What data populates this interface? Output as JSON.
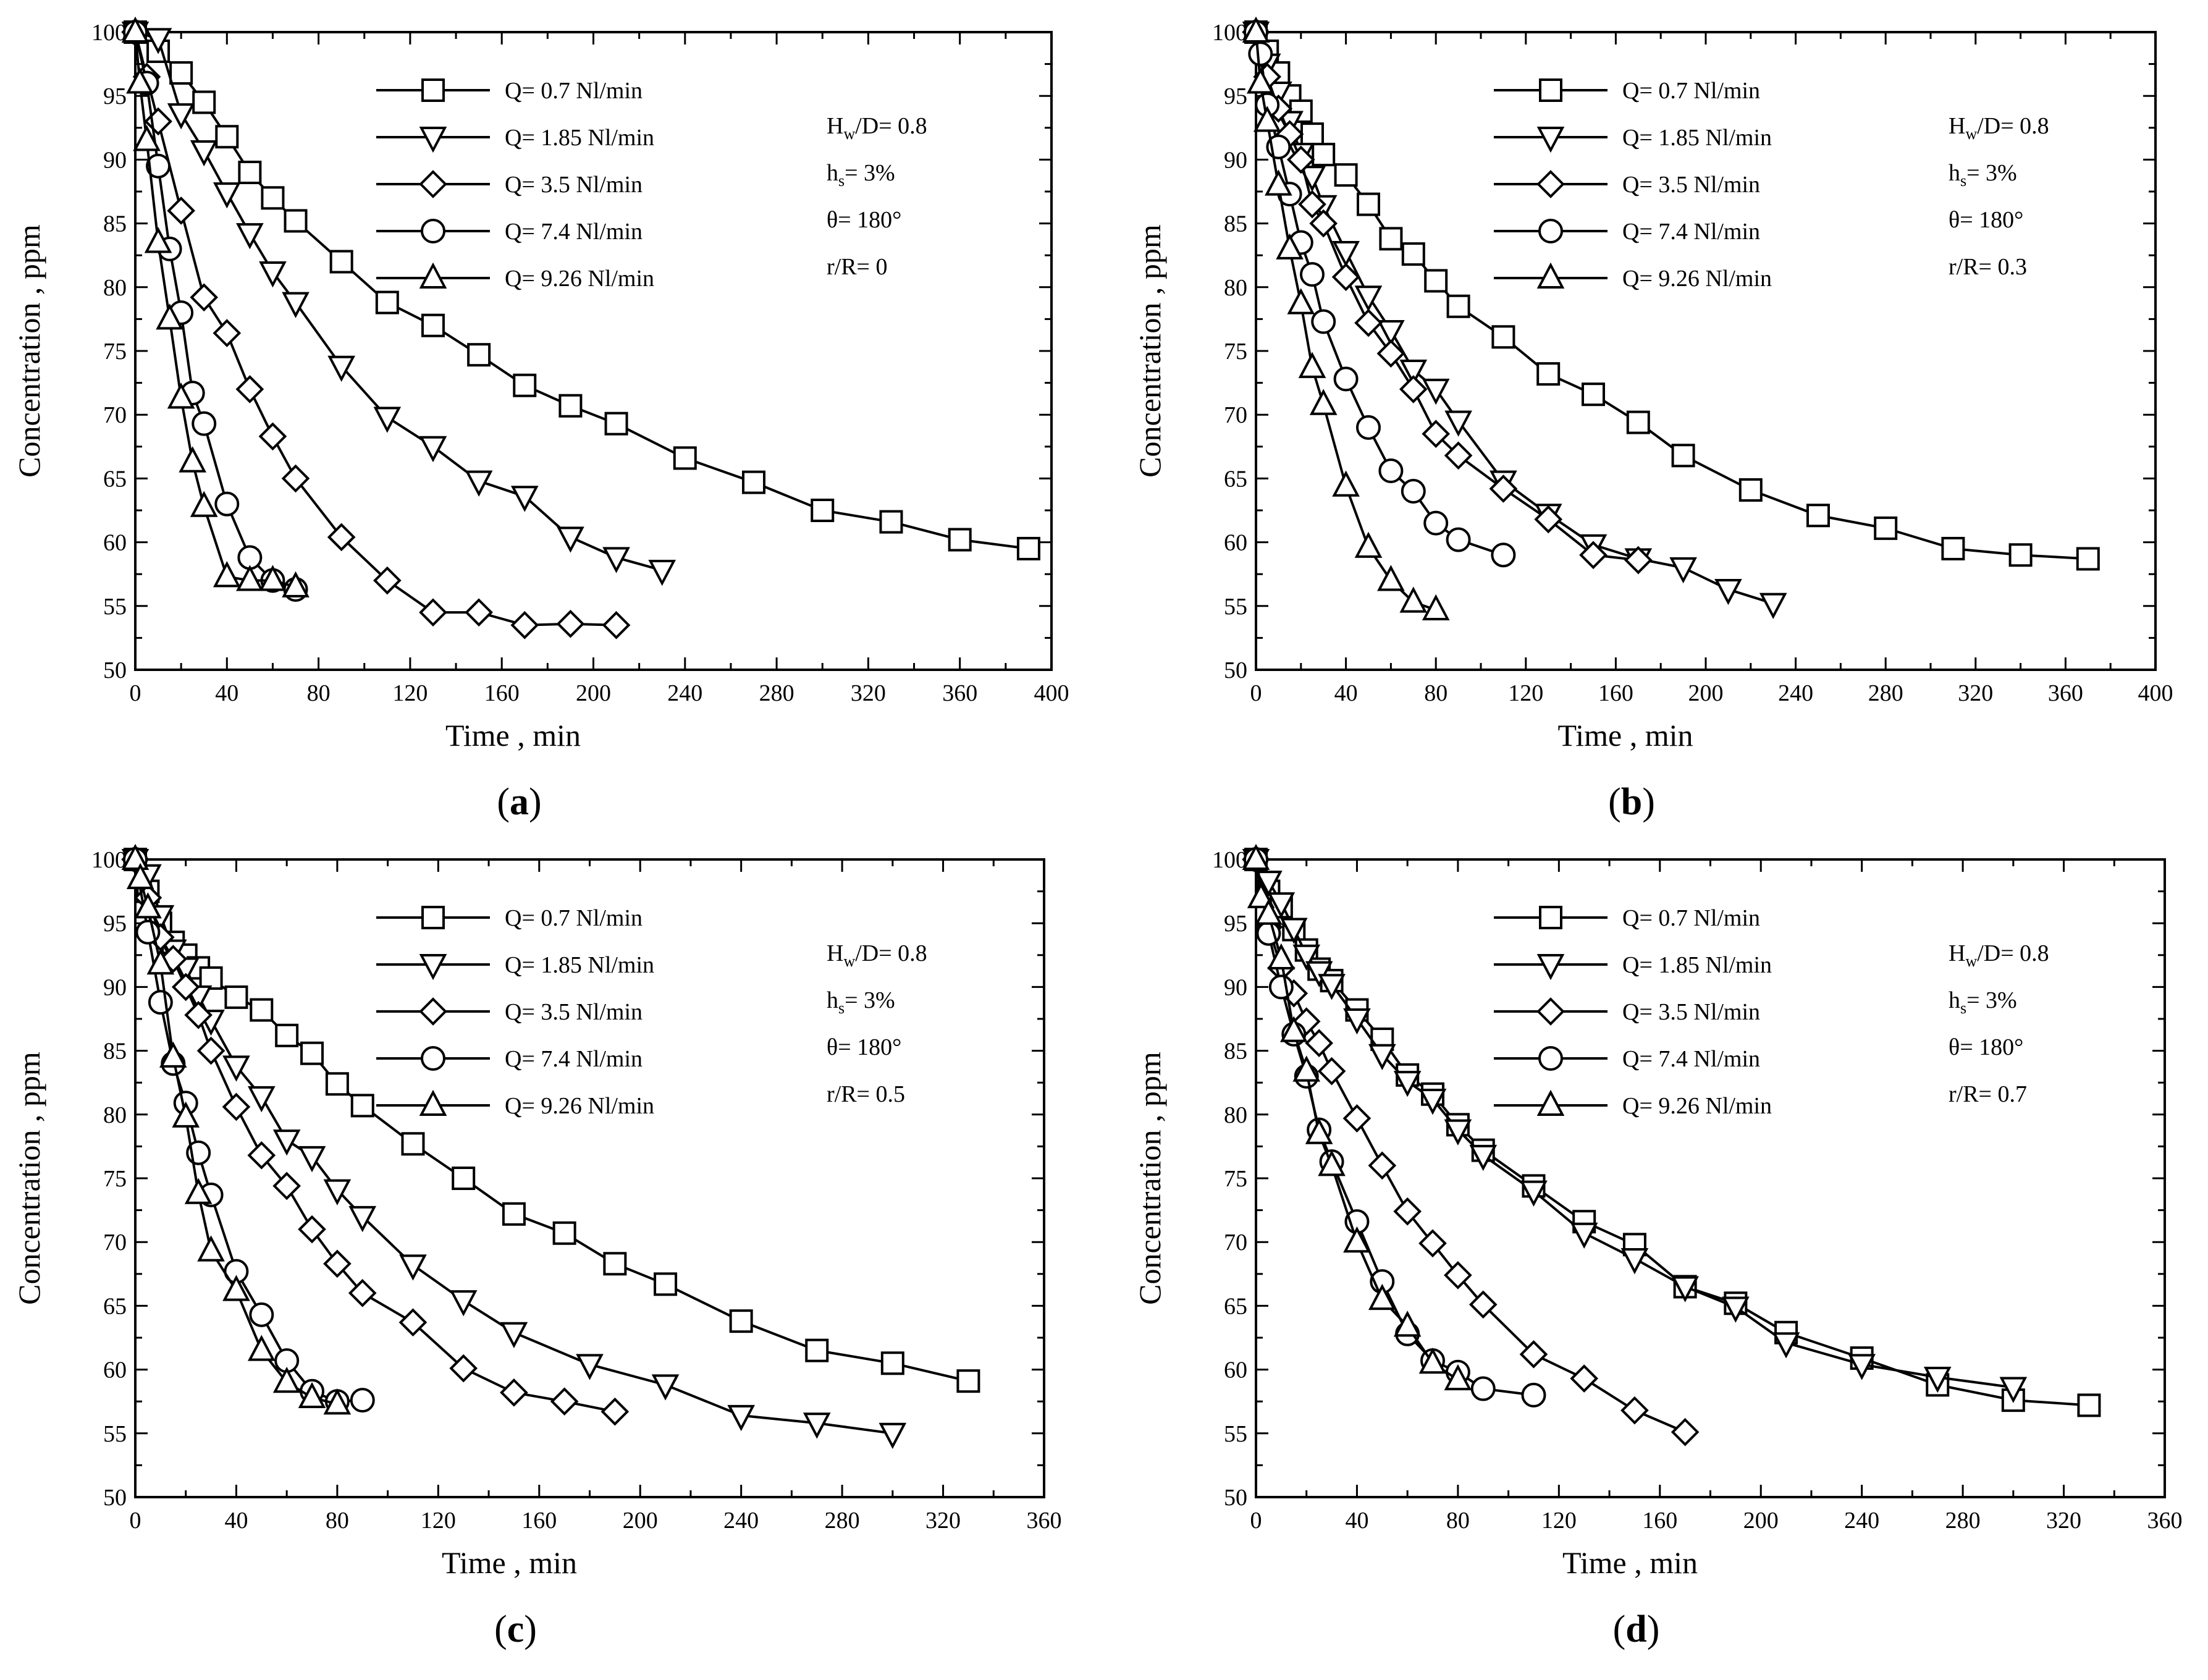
{
  "figure": {
    "marker_names": [
      "square",
      "triangle-down",
      "diamond",
      "circle",
      "triangle-up"
    ]
  },
  "chart_data": [
    {
      "type": "line",
      "panel_label": "a",
      "xlabel": "Time , min",
      "ylabel": "Concentration , ppm",
      "xlim": [
        0,
        400
      ],
      "ylim": [
        50,
        100
      ],
      "xticks": [
        "0",
        "40",
        "80",
        "120",
        "160",
        "200",
        "240",
        "280",
        "320",
        "360",
        "400"
      ],
      "yticks": [
        "50",
        "55",
        "60",
        "65",
        "70",
        "75",
        "80",
        "85",
        "90",
        "95",
        "100"
      ],
      "params": {
        "hw_prefix": "H",
        "hw_sub": "w",
        "hw_rest": "/D= 0.8",
        "hs_prefix": "h",
        "hs_sub": "s",
        "hs_rest": "= 3%",
        "theta": "θ= 180°",
        "r": "r/R= 0"
      },
      "series": [
        {
          "name": "Q= 0.7 Nl/min",
          "marker": "square",
          "x": [
            0,
            10,
            20,
            30,
            40,
            50,
            60,
            70,
            90,
            110,
            130,
            150,
            170,
            190,
            210,
            240,
            270,
            300,
            330,
            360,
            390
          ],
          "y": [
            100,
            98.5,
            96.8,
            94.5,
            91.8,
            89,
            87,
            85.2,
            82,
            78.8,
            77,
            74.7,
            72.3,
            70.7,
            69.3,
            66.6,
            64.7,
            62.5,
            61.6,
            60.2,
            59.5
          ]
        },
        {
          "name": "Q= 1.85 Nl/min",
          "marker": "triangle-down",
          "x": [
            0,
            10,
            20,
            30,
            40,
            50,
            60,
            70,
            90,
            110,
            130,
            150,
            170,
            190,
            210,
            230
          ],
          "y": [
            100,
            99.5,
            93.6,
            90.7,
            87.4,
            84.2,
            81.2,
            78.8,
            73.8,
            69.8,
            67.5,
            64.8,
            63.6,
            60.4,
            58.8,
            57.8
          ]
        },
        {
          "name": "Q= 3.5 Nl/min",
          "marker": "diamond",
          "x": [
            0,
            5,
            10,
            20,
            30,
            40,
            50,
            60,
            70,
            90,
            110,
            130,
            150,
            170,
            190,
            210
          ],
          "y": [
            100,
            96.5,
            93,
            86,
            79.2,
            76.4,
            72,
            68.3,
            65,
            60.4,
            57,
            54.5,
            54.5,
            53.5,
            53.6,
            53.5
          ]
        },
        {
          "name": "Q= 7.4 Nl/min",
          "marker": "circle",
          "x": [
            0,
            5,
            10,
            15,
            20,
            25,
            30,
            40,
            50,
            60,
            70
          ],
          "y": [
            100,
            96,
            89.5,
            83,
            78,
            71.7,
            69.3,
            63,
            58.8,
            57,
            56.3
          ]
        },
        {
          "name": "Q= 9.26 Nl/min",
          "marker": "triangle-up",
          "x": [
            0,
            2,
            5,
            10,
            15,
            20,
            25,
            30,
            40,
            50,
            60,
            70
          ],
          "y": [
            100,
            96,
            91.5,
            83.5,
            77.5,
            71.3,
            66.3,
            62.8,
            57.3,
            57,
            57,
            56.5
          ]
        }
      ]
    },
    {
      "type": "line",
      "panel_label": "b",
      "xlabel": "Time , min",
      "ylabel": "Concentration , ppm",
      "xlim": [
        0,
        400
      ],
      "ylim": [
        50,
        100
      ],
      "xticks": [
        "0",
        "40",
        "80",
        "120",
        "160",
        "200",
        "240",
        "280",
        "320",
        "360",
        "400"
      ],
      "yticks": [
        "50",
        "55",
        "60",
        "65",
        "70",
        "75",
        "80",
        "85",
        "90",
        "95",
        "100"
      ],
      "params": {
        "hw_prefix": "H",
        "hw_sub": "w",
        "hw_rest": "/D= 0.8",
        "hs_prefix": "h",
        "hs_sub": "s",
        "hs_rest": "= 3%",
        "theta": "θ= 180°",
        "r": "r/R= 0.3"
      },
      "series": [
        {
          "name": "Q= 0.7 Nl/min",
          "marker": "square",
          "x": [
            0,
            5,
            10,
            15,
            20,
            25,
            30,
            40,
            50,
            60,
            70,
            80,
            90,
            110,
            130,
            150,
            170,
            190,
            220,
            250,
            280,
            310,
            340,
            370
          ],
          "y": [
            100,
            98.5,
            96.8,
            95,
            93.8,
            92,
            90.4,
            88.8,
            86.5,
            83.8,
            82.6,
            80.5,
            78.5,
            76.1,
            73.2,
            71.6,
            69.4,
            66.8,
            64.1,
            62.1,
            61.1,
            59.5,
            59,
            58.7
          ]
        },
        {
          "name": "Q= 1.85 Nl/min",
          "marker": "triangle-down",
          "x": [
            0,
            5,
            10,
            15,
            20,
            25,
            30,
            40,
            50,
            60,
            70,
            80,
            90,
            110,
            130,
            150,
            170,
            190,
            210,
            230
          ],
          "y": [
            100,
            97.5,
            95.3,
            93,
            90.5,
            88.7,
            86.4,
            82.8,
            79.3,
            76.6,
            73.5,
            72,
            69.5,
            64.8,
            62.2,
            59.8,
            58.7,
            58,
            56.3,
            55.2
          ]
        },
        {
          "name": "Q= 3.5 Nl/min",
          "marker": "diamond",
          "x": [
            0,
            5,
            10,
            15,
            20,
            25,
            30,
            40,
            50,
            60,
            70,
            80,
            90,
            110,
            130,
            150,
            170
          ],
          "y": [
            100,
            96.5,
            94,
            92,
            90,
            86.5,
            85,
            80.8,
            77.2,
            74.8,
            72,
            68.5,
            66.8,
            64.2,
            61.8,
            59,
            58.6
          ]
        },
        {
          "name": "Q= 7.4 Nl/min",
          "marker": "circle",
          "x": [
            0,
            2,
            5,
            10,
            15,
            20,
            25,
            30,
            40,
            50,
            60,
            70,
            80,
            90,
            110
          ],
          "y": [
            100,
            98.3,
            94.3,
            91,
            87.3,
            83.5,
            81,
            77.3,
            72.8,
            69,
            65.6,
            64,
            61.5,
            60.2,
            59
          ]
        },
        {
          "name": "Q= 9.26 Nl/min",
          "marker": "triangle-up",
          "x": [
            0,
            2,
            5,
            10,
            15,
            20,
            25,
            30,
            40,
            50,
            60,
            70,
            80
          ],
          "y": [
            100,
            96,
            93,
            88,
            83,
            78.7,
            73.7,
            70.8,
            64.4,
            59.6,
            57,
            55.3,
            54.7
          ]
        }
      ]
    },
    {
      "type": "line",
      "panel_label": "c",
      "xlabel": "Time , min",
      "ylabel": "Concentration , ppm",
      "xlim": [
        0,
        360
      ],
      "ylim": [
        50,
        100
      ],
      "xticks": [
        "0",
        "40",
        "80",
        "120",
        "160",
        "200",
        "240",
        "280",
        "320",
        "360"
      ],
      "yticks": [
        "50",
        "55",
        "60",
        "65",
        "70",
        "75",
        "80",
        "85",
        "90",
        "95",
        "100"
      ],
      "params": {
        "hw_prefix": "H",
        "hw_sub": "w",
        "hw_rest": "/D= 0.8",
        "hs_prefix": "h",
        "hs_sub": "s",
        "hs_rest": "= 3%",
        "theta": "θ= 180°",
        "r": "r/R= 0.5"
      },
      "series": [
        {
          "name": "Q= 0.7 Nl/min",
          "marker": "square",
          "x": [
            0,
            5,
            10,
            15,
            20,
            25,
            30,
            40,
            50,
            60,
            70,
            80,
            90,
            110,
            130,
            150,
            170,
            190,
            210,
            240,
            270,
            300,
            330
          ],
          "y": [
            100,
            97.5,
            95,
            93.5,
            92.5,
            91.5,
            90.7,
            89.2,
            88.2,
            86.2,
            84.8,
            82.4,
            80.7,
            77.7,
            75,
            72.2,
            70.7,
            68.3,
            66.7,
            63.8,
            61.5,
            60.5,
            59.1
          ]
        },
        {
          "name": "Q= 1.85 Nl/min",
          "marker": "triangle-down",
          "x": [
            0,
            5,
            10,
            15,
            20,
            25,
            30,
            40,
            50,
            60,
            70,
            80,
            90,
            110,
            130,
            150,
            180,
            210,
            240,
            270,
            300
          ],
          "y": [
            100,
            98.8,
            95.6,
            92.9,
            91.5,
            89.3,
            87.4,
            83.8,
            81.4,
            78,
            76.7,
            74.1,
            72,
            68.2,
            65.4,
            62.9,
            60.4,
            58.8,
            56.4,
            55.8,
            55
          ]
        },
        {
          "name": "Q= 3.5 Nl/min",
          "marker": "diamond",
          "x": [
            0,
            5,
            10,
            15,
            20,
            25,
            30,
            40,
            50,
            60,
            70,
            80,
            90,
            110,
            130,
            150,
            170,
            190
          ],
          "y": [
            100,
            97,
            93.9,
            92.2,
            90,
            87.8,
            85,
            80.6,
            76.8,
            74.4,
            71,
            68.3,
            66,
            63.7,
            60.1,
            58.2,
            57.5,
            56.7
          ]
        },
        {
          "name": "Q= 7.4 Nl/min",
          "marker": "circle",
          "x": [
            0,
            5,
            10,
            15,
            20,
            25,
            30,
            40,
            50,
            60,
            70,
            80,
            90
          ],
          "y": [
            100,
            94.3,
            88.8,
            84,
            80.9,
            77,
            73.7,
            67.7,
            64.3,
            60.7,
            58.3,
            57.5,
            57.6
          ]
        },
        {
          "name": "Q= 9.26 Nl/min",
          "marker": "triangle-up",
          "x": [
            0,
            2,
            5,
            10,
            15,
            20,
            25,
            30,
            40,
            50,
            60,
            70,
            80
          ],
          "y": [
            100,
            98.5,
            96.2,
            91.8,
            84.5,
            79.8,
            73.8,
            69.3,
            66.2,
            61.5,
            59,
            57.8,
            57.3
          ]
        }
      ]
    },
    {
      "type": "line",
      "panel_label": "d",
      "xlabel": "Time , min",
      "ylabel": "Concentration , ppm",
      "xlim": [
        0,
        360
      ],
      "ylim": [
        50,
        100
      ],
      "xticks": [
        "0",
        "40",
        "80",
        "120",
        "160",
        "200",
        "240",
        "280",
        "320",
        "360"
      ],
      "yticks": [
        "50",
        "55",
        "60",
        "65",
        "70",
        "75",
        "80",
        "85",
        "90",
        "95",
        "100"
      ],
      "params": {
        "hw_prefix": "H",
        "hw_sub": "w",
        "hw_rest": "/D= 0.8",
        "hs_prefix": "h",
        "hs_sub": "s",
        "hs_rest": "= 3%",
        "theta": "θ= 180°",
        "r": "r/R= 0.7"
      },
      "series": [
        {
          "name": "Q= 0.7 Nl/min",
          "marker": "square",
          "x": [
            0,
            5,
            10,
            15,
            20,
            25,
            30,
            40,
            50,
            60,
            70,
            80,
            90,
            110,
            130,
            150,
            170,
            190,
            210,
            240,
            270,
            300,
            330
          ],
          "y": [
            100,
            97.5,
            96.3,
            94.5,
            92.9,
            91.4,
            90.5,
            88.2,
            85.9,
            83.1,
            81.6,
            79.2,
            77.2,
            74.4,
            71.6,
            69.8,
            66.5,
            65.2,
            62.9,
            60.9,
            58.8,
            57.6,
            57.2
          ]
        },
        {
          "name": "Q= 1.85 Nl/min",
          "marker": "triangle-down",
          "x": [
            0,
            5,
            10,
            15,
            20,
            25,
            30,
            40,
            50,
            60,
            70,
            80,
            90,
            110,
            130,
            150,
            170,
            190,
            210,
            240,
            270,
            300
          ],
          "y": [
            100,
            98.3,
            96.6,
            94.6,
            92.5,
            91.2,
            90.2,
            87.5,
            84.7,
            82.6,
            81.2,
            78.8,
            76.8,
            74,
            70.7,
            68.7,
            66.5,
            64.9,
            62.1,
            60.4,
            59.4,
            58.6
          ]
        },
        {
          "name": "Q= 3.5 Nl/min",
          "marker": "diamond",
          "x": [
            0,
            5,
            10,
            15,
            20,
            25,
            30,
            40,
            50,
            60,
            70,
            80,
            90,
            110,
            130,
            150,
            170
          ],
          "y": [
            100,
            94.7,
            91.5,
            89.5,
            87.3,
            85.6,
            83.4,
            79.7,
            76,
            72.4,
            69.9,
            67.4,
            65.1,
            61.2,
            59.3,
            56.8,
            55.1
          ]
        },
        {
          "name": "Q= 7.4 Nl/min",
          "marker": "circle",
          "x": [
            0,
            5,
            10,
            15,
            20,
            25,
            30,
            40,
            50,
            60,
            70,
            80,
            90,
            110
          ],
          "y": [
            100,
            94.2,
            90,
            86.3,
            83,
            78.8,
            76.3,
            71.6,
            66.9,
            62.8,
            60.7,
            59.8,
            58.5,
            58
          ]
        },
        {
          "name": "Q= 9.26 Nl/min",
          "marker": "triangle-up",
          "x": [
            0,
            2,
            5,
            10,
            15,
            20,
            25,
            30,
            40,
            50,
            60,
            70,
            80
          ],
          "y": [
            100,
            97,
            95.7,
            92.2,
            86.5,
            83.4,
            78.5,
            76,
            70,
            65.5,
            63.4,
            60.5,
            59.2
          ]
        }
      ]
    }
  ]
}
